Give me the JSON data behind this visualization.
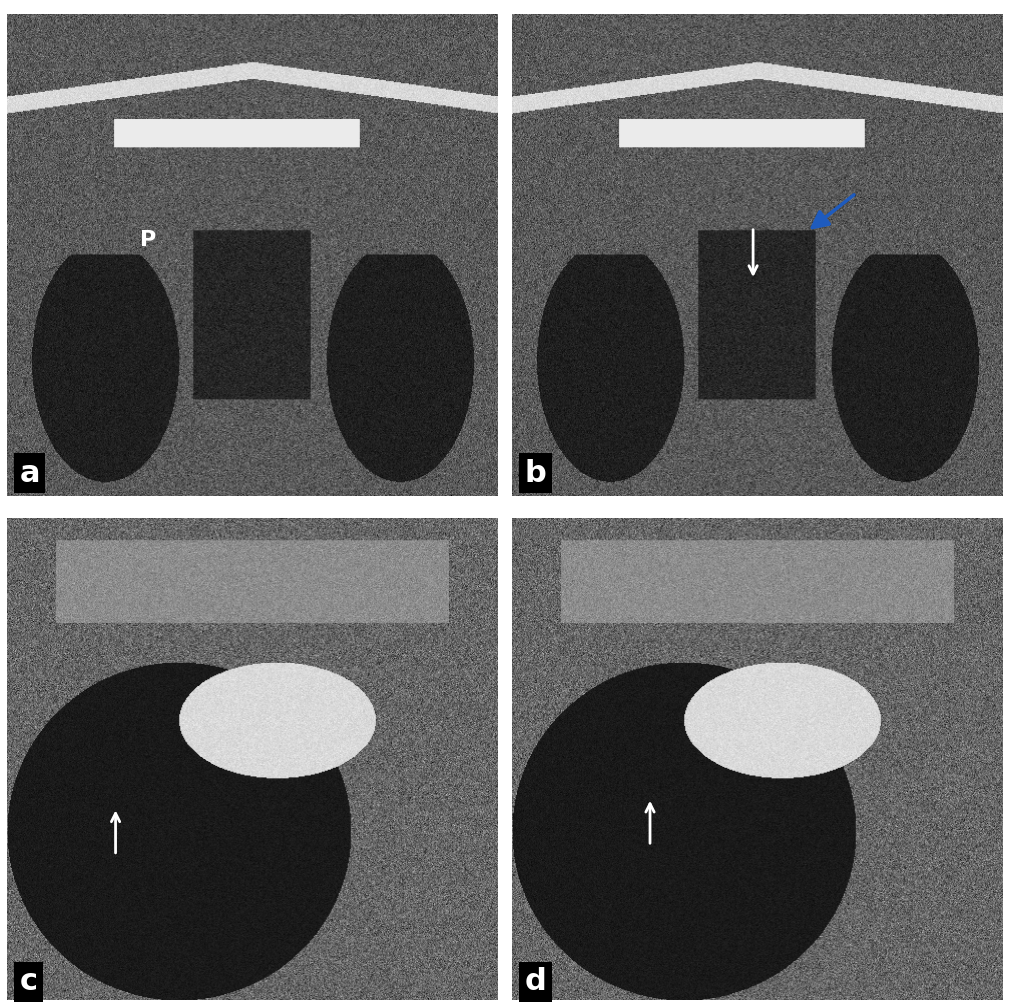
{
  "figure_width": 10.1,
  "figure_height": 10.07,
  "dpi": 100,
  "border_color": "#ffffff",
  "label_bg_color": "#000000",
  "label_text_color": "#ffffff",
  "label_fontsize": 22,
  "labels": [
    "a",
    "b",
    "c",
    "d"
  ],
  "annotation_color_white": "#ffffff",
  "annotation_color_blue": "#1e5bbf",
  "p_label": "P"
}
